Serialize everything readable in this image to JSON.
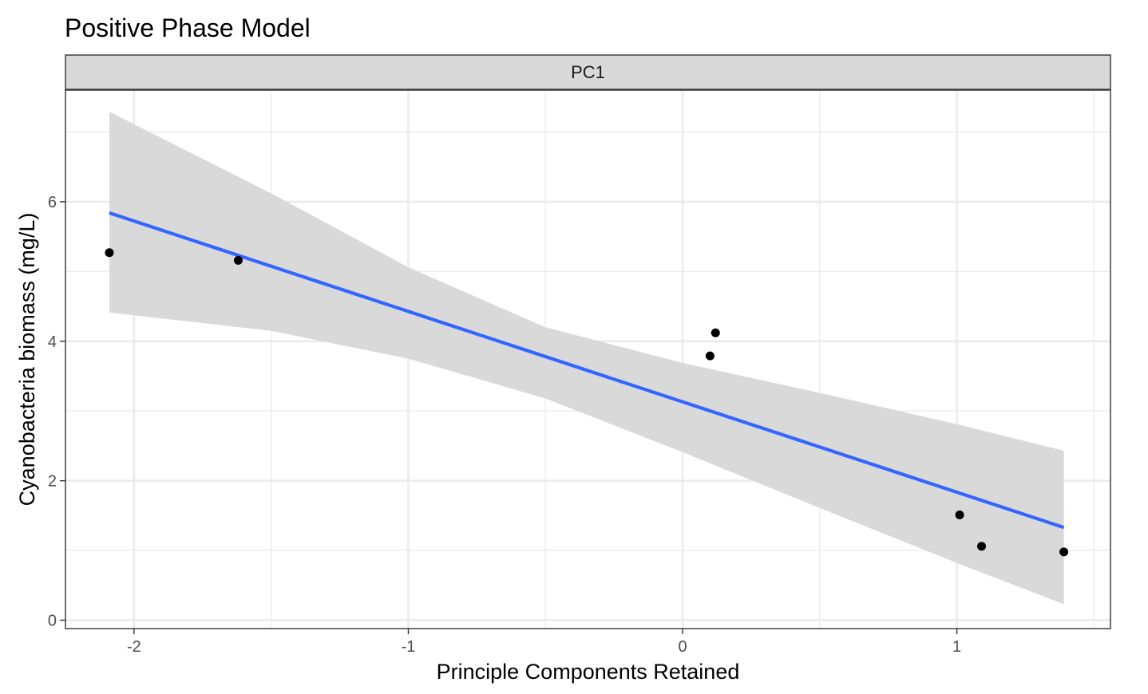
{
  "chart_data": {
    "type": "scatter",
    "title": "Positive Phase Model",
    "facet_label": "PC1",
    "xlabel": "Principle Components Retained",
    "ylabel": "Cyanobacteria biomass (mg/L)",
    "xlim": [
      -2.25,
      1.56
    ],
    "ylim": [
      -0.12,
      7.6
    ],
    "x_ticks": [
      -2,
      -1,
      0,
      1
    ],
    "x_tick_labels": [
      "-2",
      "-1",
      "0",
      "1"
    ],
    "y_ticks": [
      0,
      2,
      4,
      6
    ],
    "y_tick_labels": [
      "0",
      "2",
      "4",
      "6"
    ],
    "x_minor": [
      -1.5,
      -0.5,
      0.5,
      1.5
    ],
    "y_minor": [
      1,
      3,
      5,
      7
    ],
    "grid": true,
    "points": [
      {
        "x": -2.09,
        "y": 5.27
      },
      {
        "x": -1.62,
        "y": 5.16
      },
      {
        "x": 0.1,
        "y": 3.79
      },
      {
        "x": 0.12,
        "y": 4.12
      },
      {
        "x": 1.01,
        "y": 1.51
      },
      {
        "x": 1.09,
        "y": 1.06
      },
      {
        "x": 1.39,
        "y": 0.98
      }
    ],
    "fit_line": [
      {
        "x": -2.09,
        "y": 5.84
      },
      {
        "x": 1.39,
        "y": 1.33
      }
    ],
    "confidence_band": [
      {
        "x": -2.09,
        "lower": 4.41,
        "upper": 7.29
      },
      {
        "x": -1.5,
        "lower": 4.15,
        "upper": 6.12
      },
      {
        "x": -1.0,
        "lower": 3.75,
        "upper": 5.06
      },
      {
        "x": -0.5,
        "lower": 3.18,
        "upper": 4.2
      },
      {
        "x": 0.0,
        "lower": 2.41,
        "upper": 3.69
      },
      {
        "x": 0.5,
        "lower": 1.61,
        "upper": 3.26
      },
      {
        "x": 1.0,
        "lower": 0.82,
        "upper": 2.81
      },
      {
        "x": 1.39,
        "lower": 0.23,
        "upper": 2.43
      }
    ],
    "colors": {
      "points": "#000000",
      "fit_line": "#3366FF",
      "band": "#d9d9d9",
      "strip": "#d9d9d9",
      "grid": "#ebebeb",
      "panel_border": "#333333"
    }
  }
}
